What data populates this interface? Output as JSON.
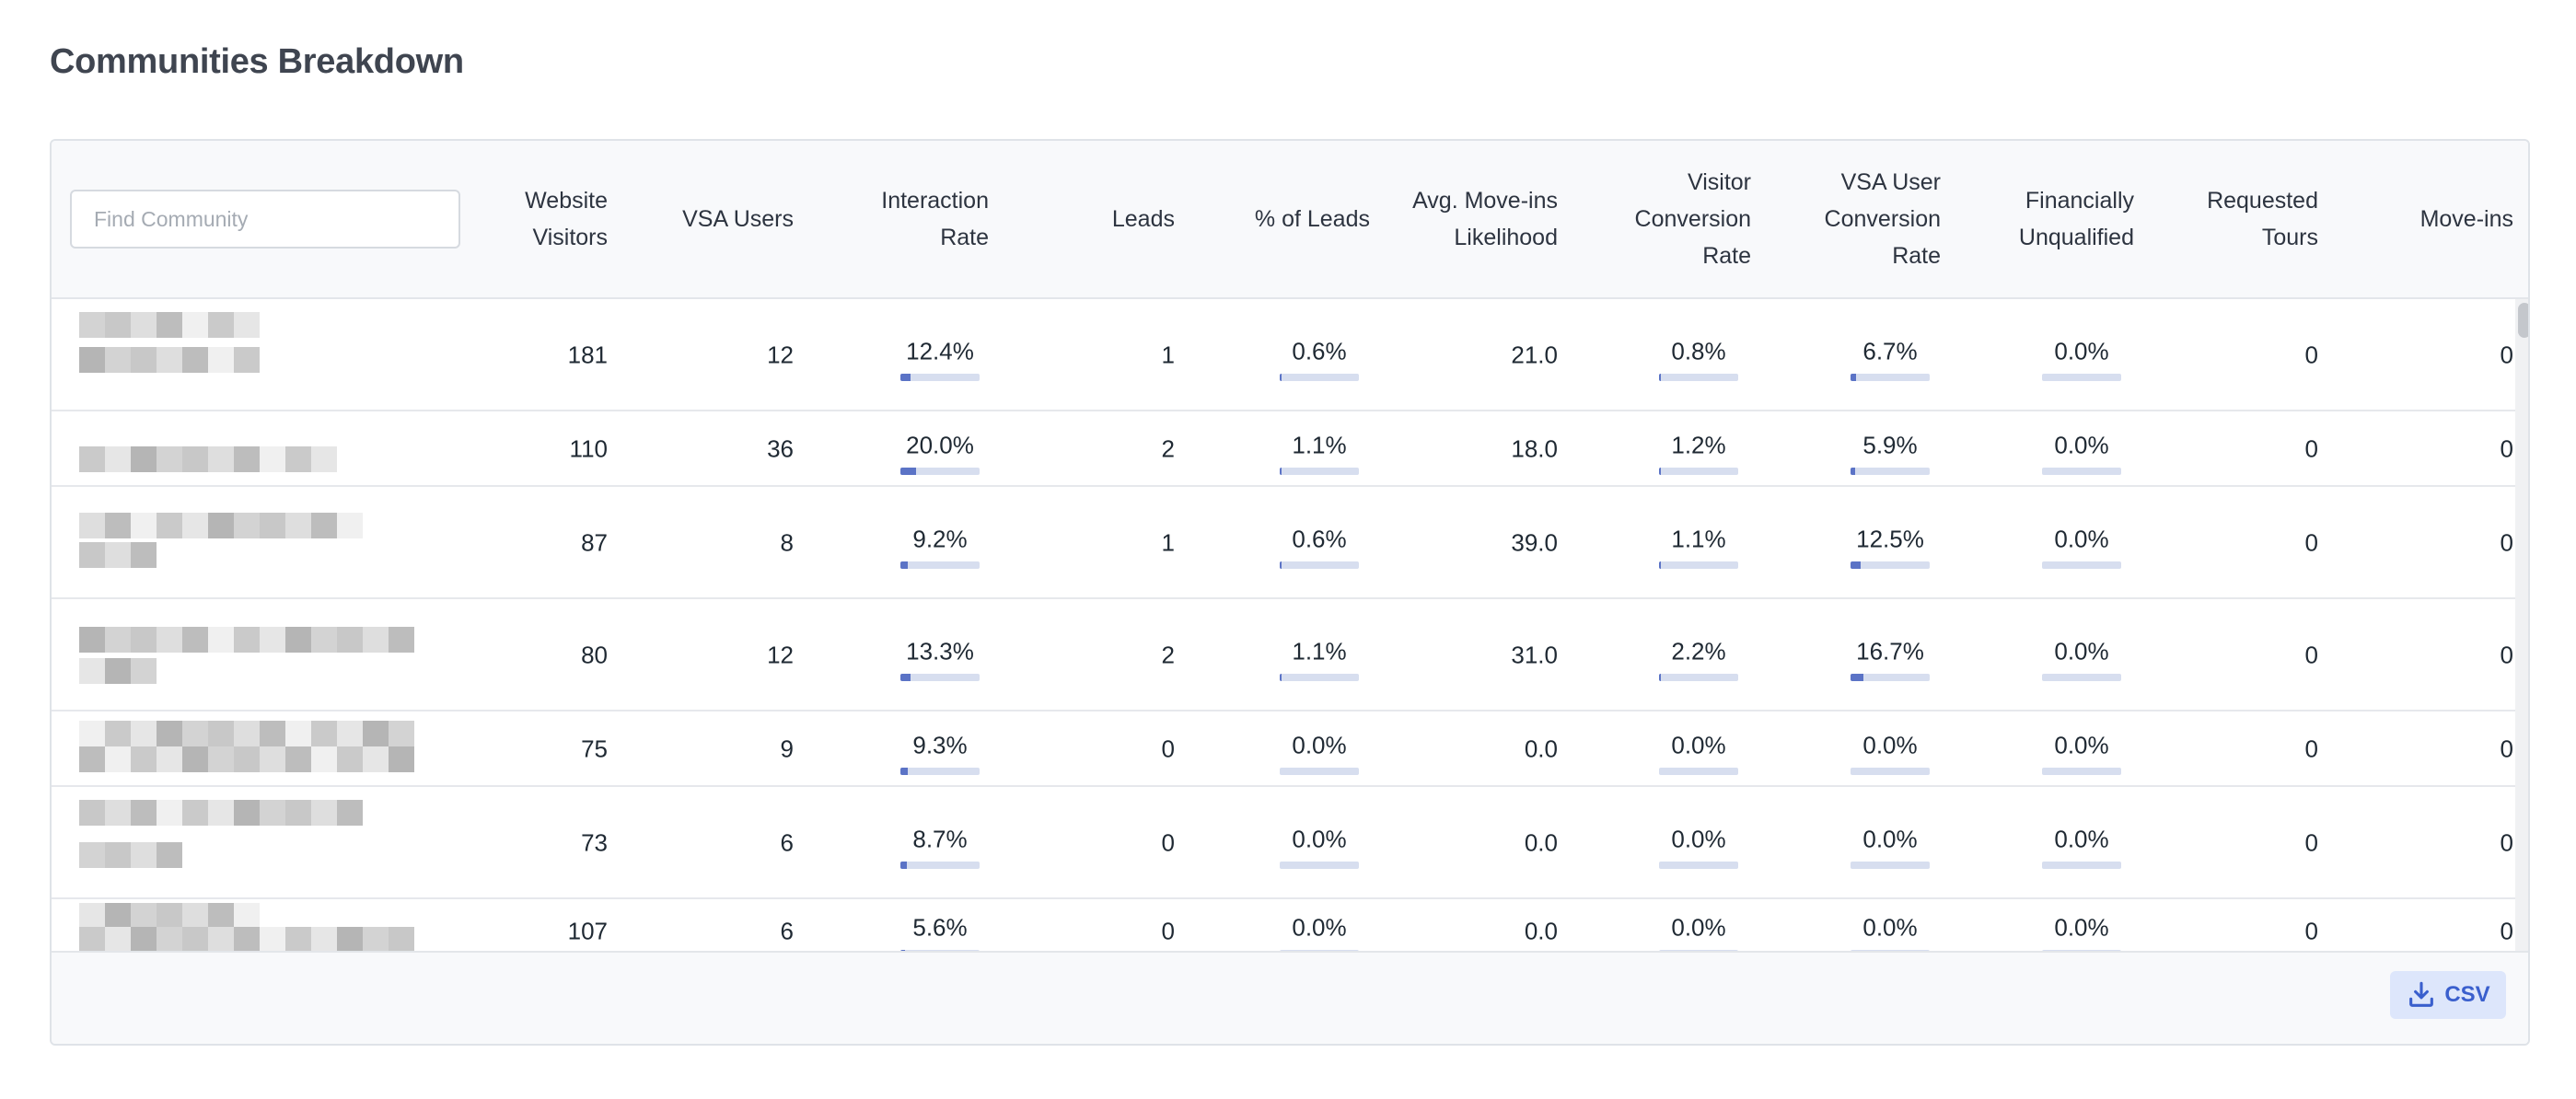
{
  "page": {
    "title": "Communities Breakdown"
  },
  "search": {
    "placeholder": "Find Community",
    "value": ""
  },
  "columns": [
    {
      "key": "website_visitors",
      "label": "Website\nVisitors"
    },
    {
      "key": "vsa_users",
      "label": "VSA Users"
    },
    {
      "key": "interaction_rate",
      "label": "Interaction\nRate"
    },
    {
      "key": "leads",
      "label": "Leads"
    },
    {
      "key": "pct_leads",
      "label": "% of Leads"
    },
    {
      "key": "avg_move_ins_likelihood",
      "label": "Avg. Move-ins\nLikelihood"
    },
    {
      "key": "visitor_conversion_rate",
      "label": "Visitor\nConversion\nRate"
    },
    {
      "key": "vsa_user_conversion_rate",
      "label": "VSA User\nConversion\nRate"
    },
    {
      "key": "financially_unqualified",
      "label": "Financially\nUnqualified"
    },
    {
      "key": "requested_tours",
      "label": "Requested\nTours"
    },
    {
      "key": "move_ins",
      "label": "Move-ins"
    }
  ],
  "rows": [
    {
      "website_visitors": "181",
      "vsa_users": "12",
      "interaction_rate": "12.4%",
      "interaction_rate_value": 0.124,
      "leads": "1",
      "pct_leads": "0.6%",
      "pct_leads_value": 0.006,
      "avg_move_ins_likelihood": "21.0",
      "visitor_conversion_rate": "0.8%",
      "visitor_conversion_rate_value": 0.008,
      "vsa_user_conversion_rate": "6.7%",
      "vsa_user_conversion_rate_value": 0.067,
      "financially_unqualified": "0.0%",
      "financially_unqualified_value": 0,
      "requested_tours": "0",
      "move_ins": "0"
    },
    {
      "website_visitors": "110",
      "vsa_users": "36",
      "interaction_rate": "20.0%",
      "interaction_rate_value": 0.2,
      "leads": "2",
      "pct_leads": "1.1%",
      "pct_leads_value": 0.011,
      "avg_move_ins_likelihood": "18.0",
      "visitor_conversion_rate": "1.2%",
      "visitor_conversion_rate_value": 0.012,
      "vsa_user_conversion_rate": "5.9%",
      "vsa_user_conversion_rate_value": 0.059,
      "financially_unqualified": "0.0%",
      "financially_unqualified_value": 0,
      "requested_tours": "0",
      "move_ins": "0"
    },
    {
      "website_visitors": "87",
      "vsa_users": "8",
      "interaction_rate": "9.2%",
      "interaction_rate_value": 0.092,
      "leads": "1",
      "pct_leads": "0.6%",
      "pct_leads_value": 0.006,
      "avg_move_ins_likelihood": "39.0",
      "visitor_conversion_rate": "1.1%",
      "visitor_conversion_rate_value": 0.011,
      "vsa_user_conversion_rate": "12.5%",
      "vsa_user_conversion_rate_value": 0.125,
      "financially_unqualified": "0.0%",
      "financially_unqualified_value": 0,
      "requested_tours": "0",
      "move_ins": "0"
    },
    {
      "website_visitors": "80",
      "vsa_users": "12",
      "interaction_rate": "13.3%",
      "interaction_rate_value": 0.133,
      "leads": "2",
      "pct_leads": "1.1%",
      "pct_leads_value": 0.011,
      "avg_move_ins_likelihood": "31.0",
      "visitor_conversion_rate": "2.2%",
      "visitor_conversion_rate_value": 0.022,
      "vsa_user_conversion_rate": "16.7%",
      "vsa_user_conversion_rate_value": 0.167,
      "financially_unqualified": "0.0%",
      "financially_unqualified_value": 0,
      "requested_tours": "0",
      "move_ins": "0"
    },
    {
      "website_visitors": "75",
      "vsa_users": "9",
      "interaction_rate": "9.3%",
      "interaction_rate_value": 0.093,
      "leads": "0",
      "pct_leads": "0.0%",
      "pct_leads_value": 0,
      "avg_move_ins_likelihood": "0.0",
      "visitor_conversion_rate": "0.0%",
      "visitor_conversion_rate_value": 0,
      "vsa_user_conversion_rate": "0.0%",
      "vsa_user_conversion_rate_value": 0,
      "financially_unqualified": "0.0%",
      "financially_unqualified_value": 0,
      "requested_tours": "0",
      "move_ins": "0"
    },
    {
      "website_visitors": "73",
      "vsa_users": "6",
      "interaction_rate": "8.7%",
      "interaction_rate_value": 0.087,
      "leads": "0",
      "pct_leads": "0.0%",
      "pct_leads_value": 0,
      "avg_move_ins_likelihood": "0.0",
      "visitor_conversion_rate": "0.0%",
      "visitor_conversion_rate_value": 0,
      "vsa_user_conversion_rate": "0.0%",
      "vsa_user_conversion_rate_value": 0,
      "financially_unqualified": "0.0%",
      "financially_unqualified_value": 0,
      "requested_tours": "0",
      "move_ins": "0"
    },
    {
      "website_visitors": "107",
      "vsa_users": "6",
      "interaction_rate": "5.6%",
      "interaction_rate_value": 0.056,
      "leads": "0",
      "pct_leads": "0.0%",
      "pct_leads_value": 0,
      "avg_move_ins_likelihood": "0.0",
      "visitor_conversion_rate": "0.0%",
      "visitor_conversion_rate_value": 0,
      "vsa_user_conversion_rate": "0.0%",
      "vsa_user_conversion_rate_value": 0,
      "financially_unqualified": "0.0%",
      "financially_unqualified_value": 0,
      "requested_tours": "0",
      "move_ins": "0"
    }
  ],
  "footer": {
    "csv_label": "CSV",
    "csv_icon": "download-icon"
  },
  "colors": {
    "accent": "#5b73c6",
    "bar_track": "#d7deef",
    "csv_bg": "#dde6fb",
    "csv_text": "#3a5fcd"
  }
}
